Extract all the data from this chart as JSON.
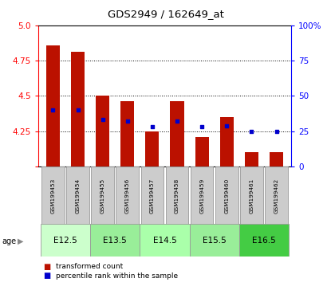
{
  "title": "GDS2949 / 162649_at",
  "samples": [
    "GSM199453",
    "GSM199454",
    "GSM199455",
    "GSM199456",
    "GSM199457",
    "GSM199458",
    "GSM199459",
    "GSM199460",
    "GSM199461",
    "GSM199462"
  ],
  "red_values": [
    4.86,
    4.81,
    4.5,
    4.46,
    4.25,
    4.46,
    4.21,
    4.35,
    4.1,
    4.1
  ],
  "blue_values": [
    4.4,
    4.4,
    4.33,
    4.32,
    4.28,
    4.32,
    4.28,
    4.29,
    4.25,
    4.25
  ],
  "ylim": [
    4.0,
    5.0
  ],
  "yticks_left": [
    4.0,
    4.25,
    4.5,
    4.75,
    5.0
  ],
  "yticks_right_vals": [
    0,
    25,
    50,
    75,
    100
  ],
  "yticks_right_labels": [
    "0",
    "25",
    "50",
    "75",
    "100%"
  ],
  "age_groups": [
    {
      "label": "E12.5",
      "samples": [
        0,
        1
      ],
      "color": "#ccffcc"
    },
    {
      "label": "E13.5",
      "samples": [
        2,
        3
      ],
      "color": "#99ee99"
    },
    {
      "label": "E14.5",
      "samples": [
        4,
        5
      ],
      "color": "#aaffaa"
    },
    {
      "label": "E15.5",
      "samples": [
        6,
        7
      ],
      "color": "#99ee99"
    },
    {
      "label": "E16.5",
      "samples": [
        8,
        9
      ],
      "color": "#44cc44"
    }
  ],
  "bar_color": "#bb1100",
  "dot_color": "#0000cc",
  "bar_width": 0.55,
  "sample_box_color": "#cccccc",
  "legend_red_label": "transformed count",
  "legend_blue_label": "percentile rank within the sample"
}
